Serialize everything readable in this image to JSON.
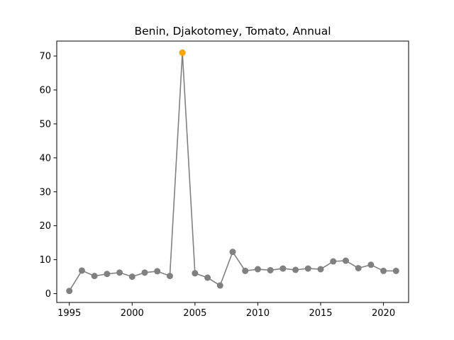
{
  "chart_data": {
    "type": "line",
    "title": "Benin, Djakotomey, Tomato, Annual",
    "xlabel": "",
    "ylabel": "",
    "x": [
      1995,
      1996,
      1997,
      1998,
      1999,
      2000,
      2001,
      2002,
      2003,
      2004,
      2005,
      2006,
      2007,
      2008,
      2009,
      2010,
      2011,
      2012,
      2013,
      2014,
      2015,
      2016,
      2017,
      2018,
      2019,
      2020,
      2021
    ],
    "series": [
      {
        "values": [
          0.8,
          6.8,
          5.2,
          5.8,
          6.2,
          5.0,
          6.2,
          6.6,
          5.2,
          71.0,
          6.0,
          4.7,
          2.4,
          12.3,
          6.7,
          7.2,
          6.9,
          7.4,
          7.0,
          7.4,
          7.2,
          9.5,
          9.7,
          7.5,
          8.5,
          6.7,
          6.7
        ],
        "color": "#808080"
      }
    ],
    "highlight": {
      "x": 2004,
      "y": 71.0,
      "color": "#FFA500"
    },
    "xlim": [
      1994.0,
      2022.0
    ],
    "ylim": [
      -2.6,
      74.4
    ],
    "xticks": [
      1995,
      2000,
      2005,
      2010,
      2015,
      2020
    ],
    "yticks": [
      0,
      10,
      20,
      30,
      40,
      50,
      60,
      70
    ],
    "grid": false,
    "legend": "none"
  }
}
